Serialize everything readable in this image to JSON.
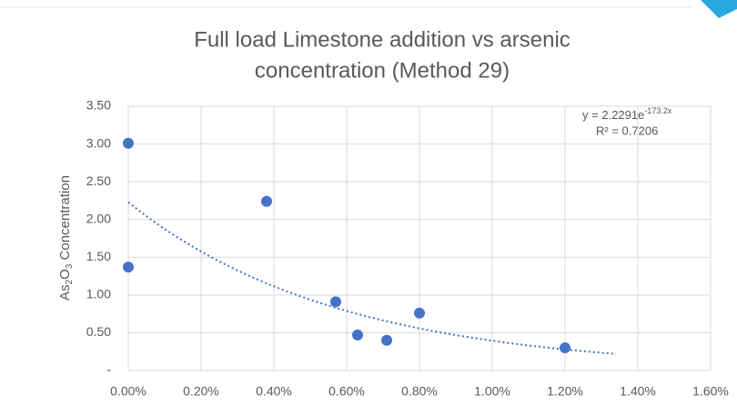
{
  "chart_data": {
    "type": "scatter",
    "title": [
      "Full load Limestone addition vs arsenic",
      "concentration (Method 29)"
    ],
    "ylabel": [
      "As",
      "2",
      "O",
      "3",
      " Concentration"
    ],
    "series": [
      {
        "color": "#4472c4",
        "x": [
          0,
          0,
          0.38,
          0.57,
          0.63,
          0.71,
          0.8,
          1.2
        ],
        "values": [
          3.01,
          1.37,
          2.24,
          0.91,
          0.47,
          0.4,
          0.76,
          0.3
        ]
      }
    ],
    "trendline": {
      "type": "exponential",
      "a": 2.2291,
      "b": -173.2,
      "forward": 0.14,
      "equation": "y = 2.2291e",
      "exponent": "-173.2x",
      "r2": "R² = 0.7206"
    },
    "xlim": [
      0,
      1.6
    ],
    "xticks": [
      {
        "value": 0,
        "label": "0.00%"
      },
      {
        "value": 0.2,
        "label": "0.20%"
      },
      {
        "value": 0.4,
        "label": "0.40%"
      },
      {
        "value": 0.6,
        "label": "0.60%"
      },
      {
        "value": 0.8,
        "label": "0.80%"
      },
      {
        "value": 1.0,
        "label": "1.00%"
      },
      {
        "value": 1.2,
        "label": "1.20%"
      },
      {
        "value": 1.4,
        "label": "1.40%"
      },
      {
        "value": 1.6,
        "label": "1.60%"
      }
    ],
    "ylim": [
      0,
      3.5
    ],
    "yticks": [
      {
        "value": 0,
        "label": "-"
      },
      {
        "value": 0.5,
        "label": "0.50"
      },
      {
        "value": 1.0,
        "label": "1.00"
      },
      {
        "value": 1.5,
        "label": "1.50"
      },
      {
        "value": 2.0,
        "label": "2.00"
      },
      {
        "value": 2.5,
        "label": "2.50"
      },
      {
        "value": 3.0,
        "label": "3.00"
      },
      {
        "value": 3.5,
        "label": "3.50"
      }
    ],
    "grid": true
  }
}
